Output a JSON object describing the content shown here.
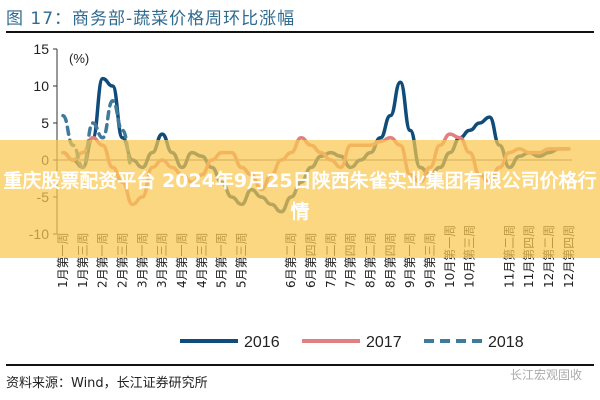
{
  "figure_title": "图 17：商务部-蔬菜价格周环比涨幅",
  "source": "资料来源：Wind，长江证券研究所",
  "watermark_logo": "长江宏观固收",
  "overlay_text": "重庆股票配资平台 2024年9月25日陕西朱雀实业集团有限公司价格行情",
  "chart_data": {
    "type": "line",
    "ylabel": "(%)",
    "ylim": [
      -10,
      15
    ],
    "yticks": [
      "15",
      "10",
      "5",
      "0",
      "-5",
      "-10"
    ],
    "ytick_values": [
      15,
      10,
      5,
      0,
      -5,
      -10
    ],
    "x_tick_labels": [
      {
        "week": 0,
        "label": "1月第一周"
      },
      {
        "week": 2,
        "label": "1月第三周"
      },
      {
        "week": 4,
        "label": "2月第一周"
      },
      {
        "week": 6,
        "label": "2月第三周"
      },
      {
        "week": 8,
        "label": "3月第一周"
      },
      {
        "week": 10,
        "label": "3月第三周"
      },
      {
        "week": 12,
        "label": "4月第一周"
      },
      {
        "week": 14,
        "label": "4月第三周"
      },
      {
        "week": 16,
        "label": "5月第一周"
      },
      {
        "week": 18,
        "label": "5月第三周"
      },
      {
        "week": 23,
        "label": "6月第二周"
      },
      {
        "week": 25,
        "label": "6月第四周"
      },
      {
        "week": 27,
        "label": "7月第二周"
      },
      {
        "week": 29,
        "label": "7月第四周"
      },
      {
        "week": 31,
        "label": "8月第二周"
      },
      {
        "week": 33,
        "label": "8月第四周"
      },
      {
        "week": 35,
        "label": "9月第一周"
      },
      {
        "week": 37,
        "label": "9月第三周"
      },
      {
        "week": 39,
        "label": "10月第一周"
      },
      {
        "week": 41,
        "label": "10月第三周"
      },
      {
        "week": 45,
        "label": "11月第二周"
      },
      {
        "week": 47,
        "label": "11月第四周"
      },
      {
        "week": 49,
        "label": "12月第二周"
      },
      {
        "week": 51,
        "label": "12月第四周"
      }
    ],
    "legend_position": "bottom",
    "series": [
      {
        "name": "2016",
        "color": "#0f4c7a",
        "style": "solid",
        "values": [
          1,
          0,
          -1,
          3,
          11,
          10,
          3,
          0,
          -1,
          1,
          3.5,
          1,
          -1,
          1,
          0.5,
          -1,
          -3,
          -5,
          -6,
          -4,
          -5,
          -6,
          -7,
          -5,
          -3,
          -1,
          0.5,
          1,
          0.5,
          -1,
          0,
          1,
          3,
          6,
          10.5,
          4,
          -1,
          -2,
          -1,
          1,
          3,
          4,
          5,
          5.8,
          2,
          -1,
          0.5,
          1,
          0.5,
          1,
          1.5,
          1.5
        ]
      },
      {
        "name": "2017",
        "color": "#e08080",
        "style": "solid",
        "values": [
          1,
          0,
          1,
          3,
          2,
          -1,
          -3,
          -6,
          -5,
          -1,
          0,
          -1,
          -2,
          -3,
          -2,
          0,
          1,
          1,
          -1,
          -2,
          -4,
          -2,
          0,
          1,
          3,
          2,
          1,
          0,
          -1,
          2,
          2,
          2,
          2.5,
          3,
          2,
          -2,
          -3,
          -1,
          2,
          3.5,
          3,
          1,
          -2,
          -3,
          -1,
          1,
          1.5,
          1,
          1,
          1.5,
          1.5,
          1.5
        ]
      },
      {
        "name": "2018",
        "color": "#3f7a9a",
        "style": "dashed",
        "values": [
          6,
          2,
          -1,
          5,
          3,
          8,
          4,
          -1
        ]
      }
    ]
  }
}
